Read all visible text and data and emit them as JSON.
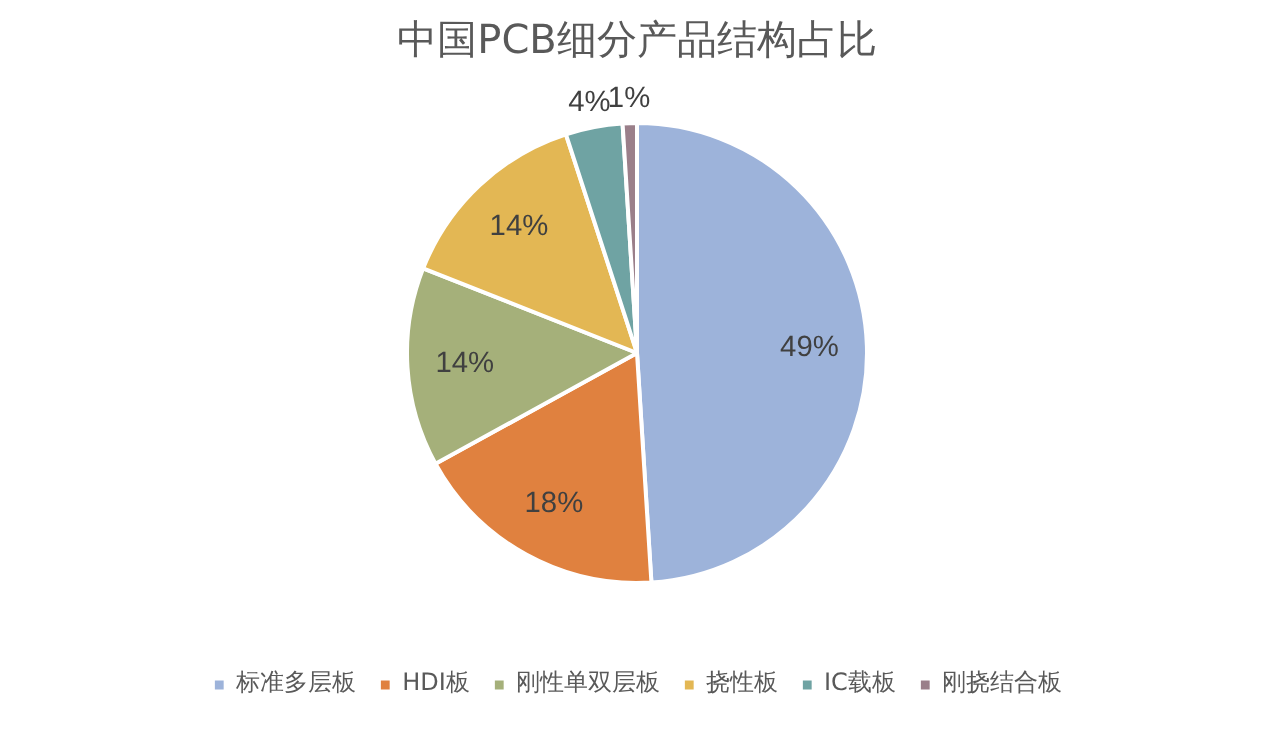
{
  "chart_data": {
    "type": "pie",
    "title": "中国PCB细分产品结构占比",
    "categories": [
      "标准多层板",
      "HDI板",
      "刚性单双层板",
      "挠性板",
      "IC载板",
      "刚挠结合板"
    ],
    "values": [
      49,
      18,
      14,
      14,
      4,
      1
    ],
    "value_labels": [
      "49%",
      "18%",
      "14%",
      "14%",
      "4%",
      "1%"
    ],
    "colors": [
      "#9db3da",
      "#e0813f",
      "#a5b07a",
      "#e3b754",
      "#6fa3a3",
      "#9a7f8a"
    ],
    "legend": "bottom"
  }
}
